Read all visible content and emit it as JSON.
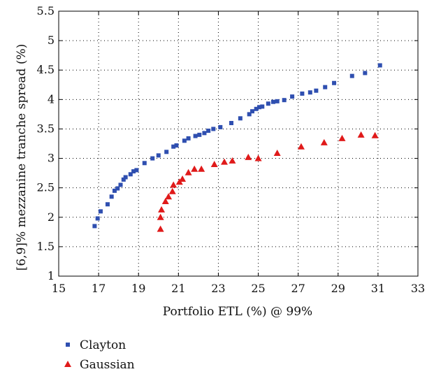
{
  "chart_data": {
    "type": "scatter",
    "title": "",
    "xlabel": "Portfolio ETL (%) @ 99%",
    "ylabel": "[6,9]% mezzanine tranche spread (%)",
    "xlim": [
      15,
      33
    ],
    "ylim": [
      1,
      5.5
    ],
    "xticks": [
      "15",
      "17",
      "19",
      "21",
      "23",
      "25",
      "27",
      "29",
      "31",
      "33"
    ],
    "yticks": [
      "1",
      "1.5",
      "2",
      "2.5",
      "3",
      "3.5",
      "4",
      "4.5",
      "5",
      "5.5"
    ],
    "grid": true,
    "legend_position": "bottom-left, below plot",
    "series": [
      {
        "name": "Clayton",
        "marker": "square",
        "color": "#2f4fb0",
        "points": [
          [
            16.8,
            1.85
          ],
          [
            16.95,
            1.98
          ],
          [
            17.1,
            2.1
          ],
          [
            17.45,
            2.22
          ],
          [
            17.65,
            2.35
          ],
          [
            17.8,
            2.45
          ],
          [
            17.95,
            2.49
          ],
          [
            18.1,
            2.55
          ],
          [
            18.25,
            2.64
          ],
          [
            18.35,
            2.68
          ],
          [
            18.6,
            2.73
          ],
          [
            18.75,
            2.78
          ],
          [
            18.9,
            2.8
          ],
          [
            19.3,
            2.92
          ],
          [
            19.7,
            3.0
          ],
          [
            20.0,
            3.05
          ],
          [
            20.4,
            3.11
          ],
          [
            20.75,
            3.2
          ],
          [
            20.9,
            3.22
          ],
          [
            21.3,
            3.3
          ],
          [
            21.5,
            3.34
          ],
          [
            21.85,
            3.38
          ],
          [
            22.05,
            3.4
          ],
          [
            22.3,
            3.43
          ],
          [
            22.5,
            3.47
          ],
          [
            22.75,
            3.5
          ],
          [
            23.1,
            3.53
          ],
          [
            23.65,
            3.6
          ],
          [
            24.1,
            3.68
          ],
          [
            24.55,
            3.75
          ],
          [
            24.7,
            3.8
          ],
          [
            24.9,
            3.84
          ],
          [
            25.05,
            3.87
          ],
          [
            25.2,
            3.88
          ],
          [
            25.5,
            3.93
          ],
          [
            25.75,
            3.96
          ],
          [
            25.95,
            3.97
          ],
          [
            26.3,
            3.99
          ],
          [
            26.7,
            4.05
          ],
          [
            27.2,
            4.1
          ],
          [
            27.6,
            4.12
          ],
          [
            27.9,
            4.15
          ],
          [
            28.35,
            4.21
          ],
          [
            28.8,
            4.28
          ],
          [
            29.7,
            4.4
          ],
          [
            30.35,
            4.45
          ],
          [
            31.1,
            4.58
          ]
        ]
      },
      {
        "name": "Gaussian",
        "marker": "triangle",
        "color": "#e01a1a",
        "points": [
          [
            20.1,
            1.8
          ],
          [
            20.1,
            2.0
          ],
          [
            20.15,
            2.13
          ],
          [
            20.35,
            2.27
          ],
          [
            20.5,
            2.35
          ],
          [
            20.7,
            2.44
          ],
          [
            20.75,
            2.55
          ],
          [
            21.05,
            2.6
          ],
          [
            21.2,
            2.65
          ],
          [
            21.5,
            2.76
          ],
          [
            21.8,
            2.82
          ],
          [
            22.15,
            2.82
          ],
          [
            22.8,
            2.9
          ],
          [
            23.3,
            2.94
          ],
          [
            23.7,
            2.96
          ],
          [
            24.5,
            3.02
          ],
          [
            25.0,
            3.0
          ],
          [
            25.95,
            3.09
          ],
          [
            27.15,
            3.2
          ],
          [
            28.3,
            3.27
          ],
          [
            29.2,
            3.34
          ],
          [
            30.15,
            3.4
          ],
          [
            30.85,
            3.39
          ]
        ]
      }
    ]
  }
}
